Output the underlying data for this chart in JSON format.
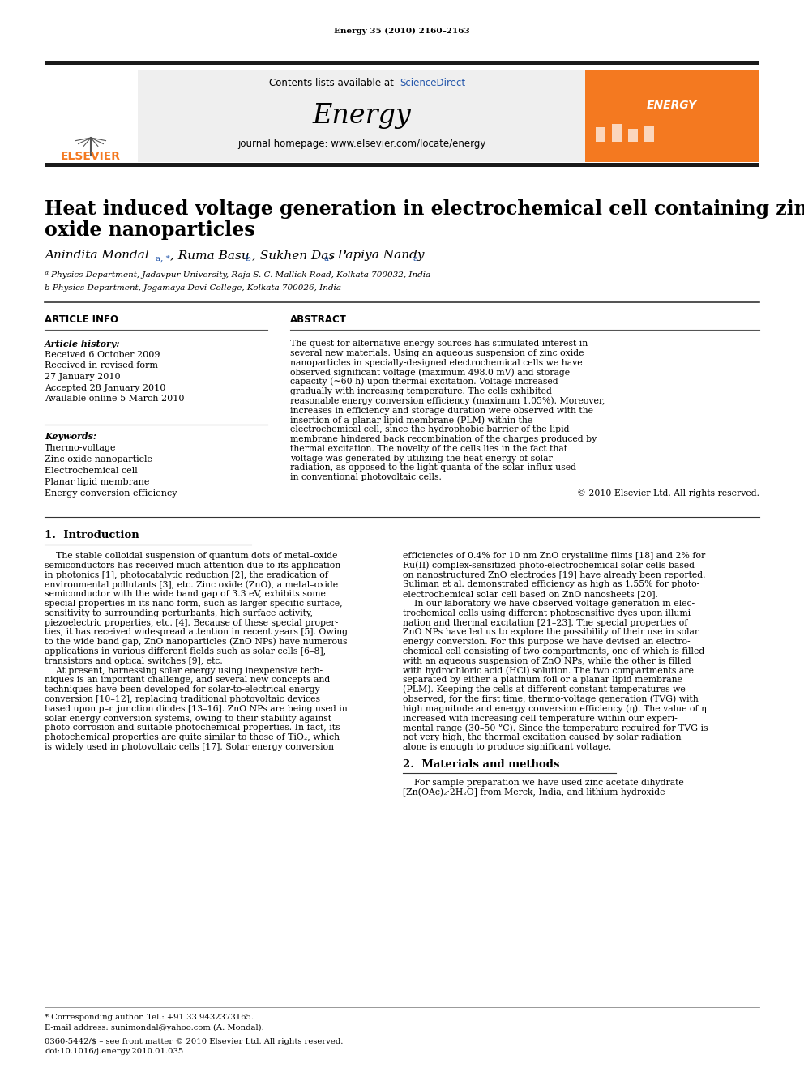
{
  "page_header": "Energy 35 (2010) 2160–2163",
  "journal_name": "Energy",
  "journal_url": "journal homepage: www.elsevier.com/locate/energy",
  "sciencedirect_text": "Contents lists available at ScienceDirect",
  "title_line1": "Heat induced voltage generation in electrochemical cell containing zinc",
  "title_line2": "oxide nanoparticles",
  "affil_a": "ª Physics Department, Jadavpur University, Raja S. C. Mallick Road, Kolkata 700032, India",
  "affil_b": "b Physics Department, Jogamaya Devi College, Kolkata 700026, India",
  "article_info_title": "ARTICLE INFO",
  "abstract_title": "ABSTRACT",
  "article_history_label": "Article history:",
  "keywords_label": "Keywords:",
  "abstract_text": "The quest for alternative energy sources has stimulated interest in several new materials. Using an aqueous suspension of zinc oxide nanoparticles in specially-designed electrochemical cells we have observed significant voltage (maximum 498.0 mV) and storage capacity (~60 h) upon thermal excitation. Voltage increased gradually with increasing temperature. The cells exhibited reasonable energy conversion efficiency (maximum 1.05%). Moreover, increases in efficiency and storage duration were observed with the insertion of a planar lipid membrane (PLM) within the electrochemical cell, since the hydrophobic barrier of the lipid membrane hindered back recombination of the charges produced by thermal excitation. The novelty of the cells lies in the fact that voltage was generated by utilizing the heat energy of solar radiation, as opposed to the light quanta of the solar influx used in conventional photovoltaic cells.",
  "copyright": "© 2010 Elsevier Ltd. All rights reserved.",
  "section1_title": "1.  Introduction",
  "section2_title": "2.  Materials and methods",
  "footnote_star": "* Corresponding author. Tel.: +91 33 9432373165.",
  "footnote_email": "E-mail address: sunimondal@yahoo.com (A. Mondal).",
  "footnote_issn": "0360-5442/$ – see front matter © 2010 Elsevier Ltd. All rights reserved.",
  "footnote_doi": "doi:10.1016/j.energy.2010.01.035",
  "bg_color": "#ffffff",
  "header_bar_color": "#1a1a1a",
  "elsevier_orange": "#f47920",
  "link_color": "#2255aa",
  "text_color": "#000000",
  "gray_bg": "#efefef",
  "history_lines": [
    "Received 6 October 2009",
    "Received in revised form",
    "27 January 2010",
    "Accepted 28 January 2010",
    "Available online 5 March 2010"
  ],
  "keywords_lines": [
    "Thermo-voltage",
    "Zinc oxide nanoparticle",
    "Electrochemical cell",
    "Planar lipid membrane",
    "Energy conversion efficiency"
  ],
  "intro_left_lines": [
    "    The stable colloidal suspension of quantum dots of metal–oxide",
    "semiconductors has received much attention due to its application",
    "in photonics [1], photocatalytic reduction [2], the eradication of",
    "environmental pollutants [3], etc. Zinc oxide (ZnO), a metal–oxide",
    "semiconductor with the wide band gap of 3.3 eV, exhibits some",
    "special properties in its nano form, such as larger specific surface,",
    "sensitivity to surrounding perturbants, high surface activity,",
    "piezoelectric properties, etc. [4]. Because of these special proper-",
    "ties, it has received widespread attention in recent years [5]. Owing",
    "to the wide band gap, ZnO nanoparticles (ZnO NPs) have numerous",
    "applications in various different fields such as solar cells [6–8],",
    "transistors and optical switches [9], etc.",
    "    At present, harnessing solar energy using inexpensive tech-",
    "niques is an important challenge, and several new concepts and",
    "techniques have been developed for solar-to-electrical energy",
    "conversion [10–12], replacing traditional photovoltaic devices",
    "based upon p–n junction diodes [13–16]. ZnO NPs are being used in",
    "solar energy conversion systems, owing to their stability against",
    "photo corrosion and suitable photochemical properties. In fact, its",
    "photochemical properties are quite similar to those of TiO₂, which",
    "is widely used in photovoltaic cells [17]. Solar energy conversion"
  ],
  "intro_right_lines": [
    "efficiencies of 0.4% for 10 nm ZnO crystalline films [18] and 2% for",
    "Ru(II) complex-sensitized photo-electrochemical solar cells based",
    "on nanostructured ZnO electrodes [19] have already been reported.",
    "Suliman et al. demonstrated efficiency as high as 1.55% for photo-",
    "electrochemical solar cell based on ZnO nanosheets [20].",
    "    In our laboratory we have observed voltage generation in elec-",
    "trochemical cells using different photosensitive dyes upon illumi-",
    "nation and thermal excitation [21–23]. The special properties of",
    "ZnO NPs have led us to explore the possibility of their use in solar",
    "energy conversion. For this purpose we have devised an electro-",
    "chemical cell consisting of two compartments, one of which is filled",
    "with an aqueous suspension of ZnO NPs, while the other is filled",
    "with hydrochloric acid (HCl) solution. The two compartments are",
    "separated by either a platinum foil or a planar lipid membrane",
    "(PLM). Keeping the cells at different constant temperatures we",
    "observed, for the first time, thermo-voltage generation (TVG) with",
    "high magnitude and energy conversion efficiency (η). The value of η",
    "increased with increasing cell temperature within our experi-",
    "mental range (30–50 °C). Since the temperature required for TVG is",
    "not very high, the thermal excitation caused by solar radiation",
    "alone is enough to produce significant voltage."
  ],
  "sec2_lines": [
    "    For sample preparation we have used zinc acetate dihydrate",
    "[Zn(OAc)₂·2H₂O] from Merck, India, and lithium hydroxide"
  ]
}
